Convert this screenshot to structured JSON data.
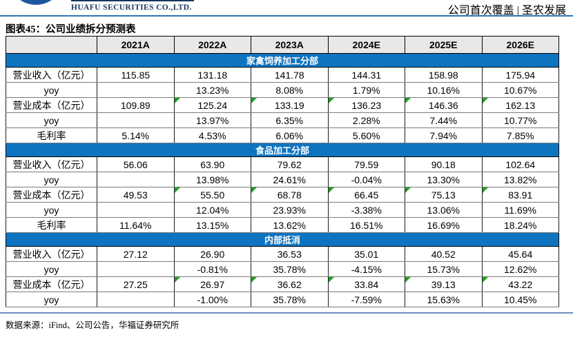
{
  "header": {
    "logo_text": "HUAFU SECURITIES CO.,LTD.",
    "coverage_text": "公司首次覆盖 | 圣农发展"
  },
  "title": "图表45：公司业绩拆分预测表",
  "table": {
    "columns": [
      "",
      "2021A",
      "2022A",
      "2023A",
      "2024E",
      "2025E",
      "2026E"
    ],
    "sections": [
      {
        "banner": "家禽饲养加工分部",
        "rows": [
          {
            "label": "营业收入（亿元）",
            "values": [
              "115.85",
              "131.18",
              "141.78",
              "144.31",
              "158.98",
              "175.94"
            ],
            "flags": [
              false,
              false,
              false,
              false,
              false,
              false
            ]
          },
          {
            "label": "yoy",
            "values": [
              "",
              "13.23%",
              "8.08%",
              "1.79%",
              "10.16%",
              "10.67%"
            ],
            "flags": [
              false,
              false,
              false,
              false,
              false,
              false
            ]
          },
          {
            "label": "营业成本（亿元）",
            "values": [
              "109.89",
              "125.24",
              "133.19",
              "136.23",
              "146.36",
              "162.13"
            ],
            "flags": [
              false,
              true,
              true,
              true,
              true,
              true
            ]
          },
          {
            "label": "yoy",
            "values": [
              "",
              "13.97%",
              "6.35%",
              "2.28%",
              "7.44%",
              "10.77%"
            ],
            "flags": [
              false,
              false,
              false,
              false,
              false,
              false
            ]
          },
          {
            "label": "毛利率",
            "values": [
              "5.14%",
              "4.53%",
              "6.06%",
              "5.60%",
              "7.94%",
              "7.85%"
            ],
            "flags": [
              false,
              false,
              false,
              false,
              false,
              false
            ]
          }
        ]
      },
      {
        "banner": "食品加工分部",
        "rows": [
          {
            "label": "营业收入（亿元）",
            "values": [
              "56.06",
              "63.90",
              "79.62",
              "79.59",
              "90.18",
              "102.64"
            ],
            "flags": [
              false,
              false,
              false,
              false,
              false,
              false
            ]
          },
          {
            "label": "yoy",
            "values": [
              "",
              "13.98%",
              "24.61%",
              "-0.04%",
              "13.30%",
              "13.82%"
            ],
            "flags": [
              false,
              false,
              false,
              false,
              false,
              false
            ]
          },
          {
            "label": "营业成本（亿元）",
            "values": [
              "49.53",
              "55.50",
              "68.78",
              "66.45",
              "75.13",
              "83.91"
            ],
            "flags": [
              false,
              true,
              true,
              true,
              true,
              true
            ]
          },
          {
            "label": "yoy",
            "values": [
              "",
              "12.04%",
              "23.93%",
              "-3.38%",
              "13.06%",
              "11.69%"
            ],
            "flags": [
              false,
              false,
              false,
              false,
              false,
              false
            ]
          },
          {
            "label": "毛利率",
            "values": [
              "11.64%",
              "13.15%",
              "13.62%",
              "16.51%",
              "16.69%",
              "18.24%"
            ],
            "flags": [
              false,
              false,
              false,
              false,
              false,
              false
            ]
          }
        ]
      },
      {
        "banner": "内部抵消",
        "rows": [
          {
            "label": "营业收入（亿元）",
            "values": [
              "27.12",
              "26.90",
              "36.53",
              "35.01",
              "40.52",
              "45.64"
            ],
            "flags": [
              false,
              false,
              false,
              false,
              false,
              false
            ]
          },
          {
            "label": "yoy",
            "values": [
              "",
              "-0.81%",
              "35.78%",
              "-4.15%",
              "15.73%",
              "12.62%"
            ],
            "flags": [
              false,
              false,
              false,
              false,
              false,
              false
            ]
          },
          {
            "label": "营业成本（亿元）",
            "values": [
              "27.25",
              "26.97",
              "36.62",
              "33.84",
              "39.13",
              "43.22"
            ],
            "flags": [
              false,
              true,
              true,
              true,
              true,
              true
            ]
          },
          {
            "label": "yoy",
            "values": [
              "",
              "-1.00%",
              "35.78%",
              "-7.59%",
              "15.63%",
              "10.45%"
            ],
            "flags": [
              false,
              false,
              false,
              false,
              false,
              false
            ]
          }
        ]
      }
    ]
  },
  "footer": {
    "source_text": "数据来源：iFind、公司公告，华福证券研究所"
  },
  "colors": {
    "banner_blue": "#0F74C0",
    "rule_blue": "#2E74B5",
    "navy": "#17365D",
    "logo_blue": "#1E56A0",
    "flag_green": "#21A121",
    "bottom_rule": "#6C8EBF"
  }
}
